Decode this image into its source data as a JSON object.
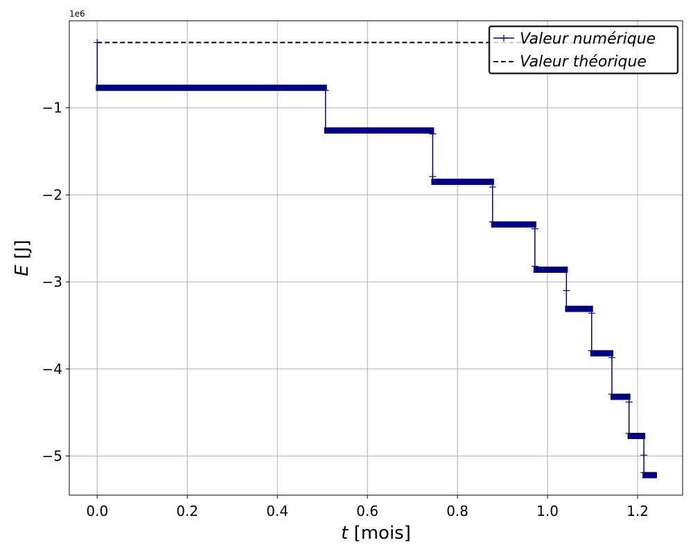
{
  "chart_data": {
    "type": "line",
    "xlabel_var": "t",
    "xlabel_unit": "[mois]",
    "ylabel_var": "E",
    "ylabel_unit": "[J]",
    "y_offset_text": "1e6",
    "xlim": [
      -0.062,
      1.3
    ],
    "ylim": [
      -5.45,
      -0.0
    ],
    "xticks": [
      0.0,
      0.2,
      0.4,
      0.6,
      0.8,
      1.0,
      1.2
    ],
    "xtick_labels": [
      "0.0",
      "0.2",
      "0.4",
      "0.6",
      "0.8",
      "1.0",
      "1.2"
    ],
    "yticks": [
      -1,
      -2,
      -3,
      -4,
      -5
    ],
    "ytick_labels": [
      "−1",
      "−2",
      "−3",
      "−4",
      "−5"
    ],
    "grid": true,
    "legend_position": "top-right",
    "series": [
      {
        "name": "Valeur numérique",
        "color": "#000080",
        "marker": "+",
        "style": "step",
        "steps": [
          {
            "x_start": 0.0,
            "x_end": 0.0,
            "y": -0.25
          },
          {
            "x_start": 0.0,
            "x_end": 0.507,
            "y": -0.77
          },
          {
            "x_start": 0.507,
            "x_end": 0.745,
            "y": -1.26
          },
          {
            "x_start": 0.745,
            "x_end": 0.878,
            "y": -1.85
          },
          {
            "x_start": 0.878,
            "x_end": 0.972,
            "y": -2.34
          },
          {
            "x_start": 0.972,
            "x_end": 1.042,
            "y": -2.86
          },
          {
            "x_start": 1.042,
            "x_end": 1.098,
            "y": -3.31
          },
          {
            "x_start": 1.098,
            "x_end": 1.143,
            "y": -3.82
          },
          {
            "x_start": 1.143,
            "x_end": 1.181,
            "y": -4.32
          },
          {
            "x_start": 1.181,
            "x_end": 1.214,
            "y": -4.77
          },
          {
            "x_start": 1.214,
            "x_end": 1.24,
            "y": -5.22
          }
        ],
        "transition_markers": [
          {
            "x": 0.0,
            "y": -0.25
          },
          {
            "x": 0.507,
            "y": -0.8
          },
          {
            "x": 0.745,
            "y": -1.3
          },
          {
            "x": 0.745,
            "y": -1.79
          },
          {
            "x": 0.878,
            "y": -1.91
          },
          {
            "x": 0.878,
            "y": -2.31
          },
          {
            "x": 0.972,
            "y": -2.39
          },
          {
            "x": 0.972,
            "y": -2.82
          },
          {
            "x": 1.042,
            "y": -3.1
          },
          {
            "x": 1.098,
            "y": -3.36
          },
          {
            "x": 1.098,
            "y": -3.79
          },
          {
            "x": 1.143,
            "y": -3.87
          },
          {
            "x": 1.143,
            "y": -4.29
          },
          {
            "x": 1.181,
            "y": -4.38
          },
          {
            "x": 1.181,
            "y": -4.74
          },
          {
            "x": 1.214,
            "y": -4.99
          },
          {
            "x": 1.214,
            "y": -5.19
          }
        ]
      },
      {
        "name": "Valeur théorique",
        "color": "#000000",
        "style": "dashed",
        "x": [
          0.0,
          1.24
        ],
        "y": [
          -0.25,
          -0.25
        ]
      }
    ]
  }
}
